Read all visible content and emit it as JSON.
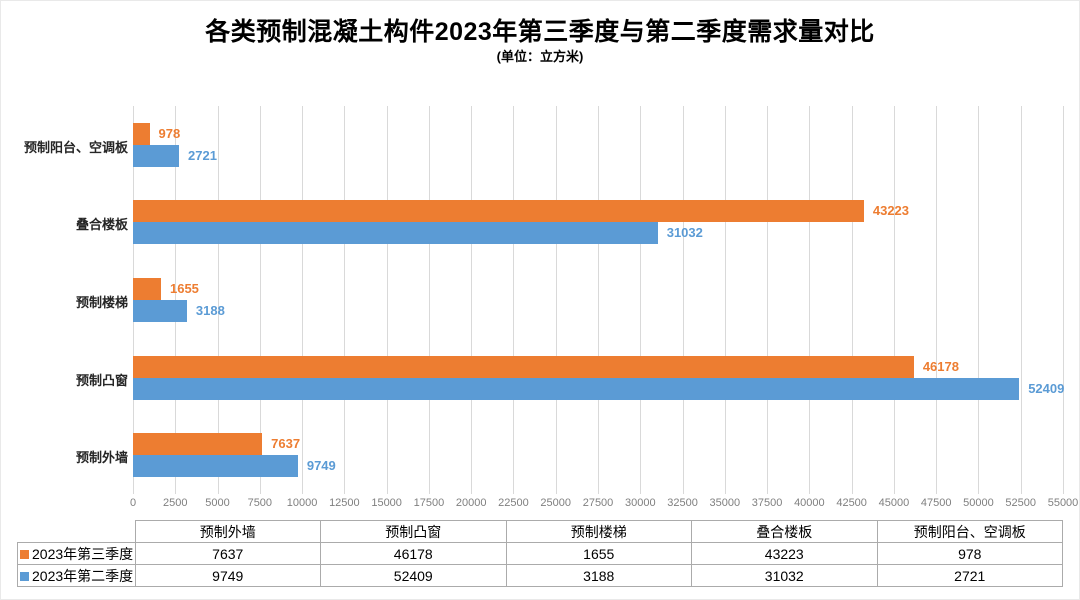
{
  "title": "各类预制混凝土构件2023年第三季度与第二季度需求量对比",
  "subtitle": "(单位：立方米)",
  "chart_data": {
    "type": "bar",
    "orientation": "horizontal",
    "title": "各类预制混凝土构件2023年第三季度与第二季度需求量对比",
    "subtitle": "(单位：立方米)",
    "categories": [
      "预制外墙",
      "预制凸窗",
      "预制楼梯",
      "叠合楼板",
      "预制阳台、空调板"
    ],
    "series": [
      {
        "name": "2023年第三季度",
        "color": "#ED7D31",
        "values": [
          7637,
          46178,
          1655,
          43223,
          978
        ]
      },
      {
        "name": "2023年第二季度",
        "color": "#5B9BD5",
        "values": [
          9749,
          52409,
          3188,
          31032,
          2721
        ]
      }
    ],
    "xlim": [
      0,
      55000
    ],
    "xticks": [
      0,
      2500,
      5000,
      7500,
      10000,
      12500,
      15000,
      17500,
      20000,
      22500,
      25000,
      27500,
      30000,
      32500,
      35000,
      37500,
      40000,
      42500,
      45000,
      47500,
      50000,
      52500,
      55000
    ],
    "grid": true,
    "gridline_color": "#d9d9d9",
    "axis_reversed": true,
    "legend_position": "table-left",
    "value_labels": true
  },
  "colors": {
    "q3_orange": "#ED7D31",
    "q2_blue": "#5B9BD5"
  }
}
